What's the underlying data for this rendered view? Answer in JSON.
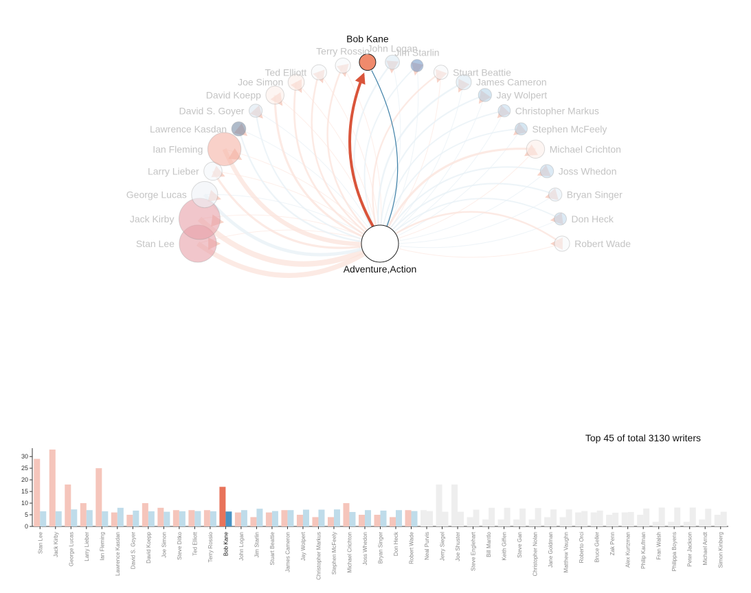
{
  "network": {
    "center_label": "Adventure,Action",
    "highlight_writer": "Bob Kane",
    "writers": [
      {
        "name": "Stan Lee",
        "color": "#e8a0a8",
        "size": 29
      },
      {
        "name": "Jack Kirby",
        "color": "#e8a0a8",
        "size": 33
      },
      {
        "name": "George Lucas",
        "color": "#eef2f6",
        "size": 18
      },
      {
        "name": "Larry Lieber",
        "color": "#f4f7fa",
        "size": 10
      },
      {
        "name": "Ian Fleming",
        "color": "#f5b3a5",
        "size": 25
      },
      {
        "name": "Lawrence Kasdan",
        "color": "#7a8ea6",
        "size": 6
      },
      {
        "name": "David S. Goyer",
        "color": "#dce8f2",
        "size": 5
      },
      {
        "name": "David Koepp",
        "color": "#fbefe9",
        "size": 10
      },
      {
        "name": "Joe Simon",
        "color": "#fbefe9",
        "size": 8
      },
      {
        "name": "Ted Elliott",
        "color": "#f6f8fa",
        "size": 7
      },
      {
        "name": "Terry Rossio",
        "color": "#f6f8fa",
        "size": 7
      },
      {
        "name": "Bob Kane",
        "color": "#f08a6c",
        "size": 17
      },
      {
        "name": "John Logan",
        "color": "#dbe9f3",
        "size": 6
      },
      {
        "name": "Jim Starlin",
        "color": "#7a9cc9",
        "size": 4
      },
      {
        "name": "Stuart Beattie",
        "color": "#f6f8fa",
        "size": 6
      },
      {
        "name": "James Cameron",
        "color": "#dbe9f3",
        "size": 7
      },
      {
        "name": "Jay Wolpert",
        "color": "#b9d6ea",
        "size": 5
      },
      {
        "name": "Christopher Markus",
        "color": "#c4dcee",
        "size": 4
      },
      {
        "name": "Stephen McFeely",
        "color": "#b9d6ea",
        "size": 4
      },
      {
        "name": "Michael Crichton",
        "color": "#fcefea",
        "size": 10
      },
      {
        "name": "Joss Whedon",
        "color": "#c4dcee",
        "size": 5
      },
      {
        "name": "Bryan Singer",
        "color": "#e4eef6",
        "size": 5
      },
      {
        "name": "Don Heck",
        "color": "#c4dcee",
        "size": 4
      },
      {
        "name": "Robert Wade",
        "color": "#f6f8fa",
        "size": 7
      }
    ]
  },
  "caption": "Top 45 of total 3130 writers",
  "colors": {
    "faded_red": "#f5c5bb",
    "faded_blue": "#bfdcea",
    "highlight_red": "#e8735a",
    "highlight_blue": "#4a93c4",
    "grey": "#eeeeee"
  },
  "chart_data": {
    "type": "bar",
    "ylim": [
      0,
      33
    ],
    "yticks": [
      0,
      5,
      10,
      15,
      20,
      25,
      30
    ],
    "highlight": "Bob Kane",
    "categories": [
      "Stan Lee",
      "Jack Kirby",
      "George Lucas",
      "Larry Lieber",
      "Ian Fleming",
      "Lawrence Kasdan",
      "David S. Goyer",
      "David Koepp",
      "Joe Simon",
      "Steve Ditko",
      "Ted Elliott",
      "Terry Rossio",
      "Bob Kane",
      "John Logan",
      "Jim Starlin",
      "Stuart Beattie",
      "James Cameron",
      "Jay Wolpert",
      "Christopher Markus",
      "Stephen McFeely",
      "Michael Crichton",
      "Joss Whedon",
      "Bryan Singer",
      "Don Heck",
      "Robert Wade",
      "Neal Purvis",
      "Jerry Siegel",
      "Joe Shuster",
      "Steve Englehart",
      "Bill Mantlo",
      "Keith Giffen",
      "Steve Gan",
      "Christopher Nolan",
      "Jane Goldman",
      "Matthew Vaughn",
      "Roberto Orci",
      "Bruce Geller",
      "Zak Penn",
      "Alex Kurtzman",
      "Philip Kaufman",
      "Fran Walsh",
      "Philippa Boyens",
      "Peter Jackson",
      "Michael Arndt",
      "Simon Kinberg"
    ],
    "series": [
      {
        "values": [
          29,
          33,
          18,
          10,
          25,
          6,
          5,
          10,
          8,
          7,
          7,
          7,
          17,
          6,
          4,
          6,
          7,
          5,
          4,
          4,
          10,
          5,
          5,
          4,
          7,
          7,
          18,
          18,
          4,
          3,
          3,
          3,
          3,
          4,
          4,
          6,
          6,
          5,
          6,
          5,
          2,
          2,
          2,
          3,
          5
        ]
      },
      {
        "values": [
          6.5,
          6.5,
          7.3,
          7.0,
          6.5,
          8.0,
          6.8,
          6.5,
          6.3,
          6.5,
          6.6,
          6.5,
          6.4,
          7.0,
          7.6,
          6.6,
          7.0,
          7.2,
          7.2,
          7.3,
          6.2,
          7.0,
          6.8,
          7.0,
          6.6,
          6.6,
          6.3,
          6.3,
          7.2,
          8.0,
          8.0,
          7.7,
          7.9,
          7.3,
          7.3,
          6.6,
          6.8,
          5.9,
          6.2,
          7.7,
          8.1,
          8.1,
          8.1,
          7.6,
          6.3
        ]
      }
    ]
  }
}
